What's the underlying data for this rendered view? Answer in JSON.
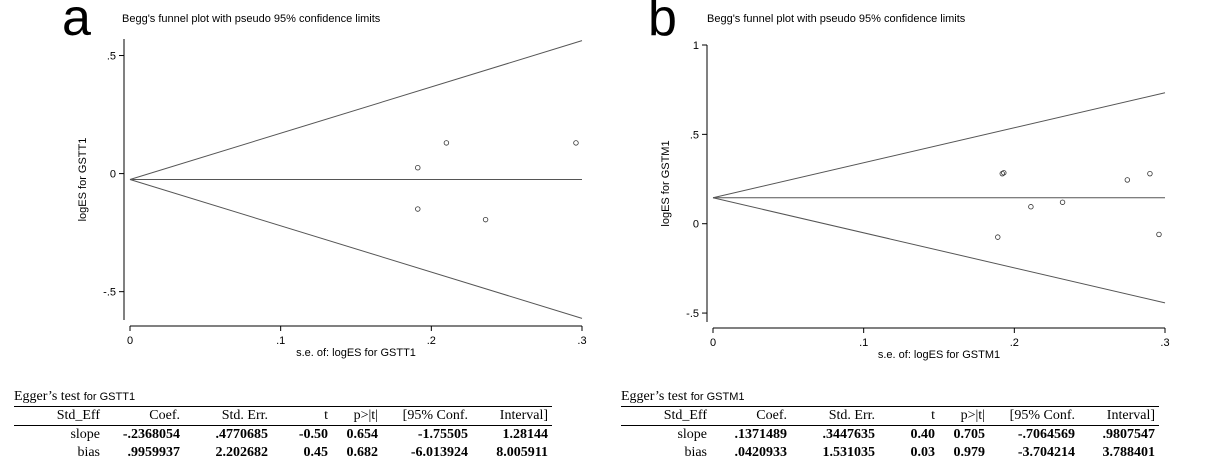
{
  "chart_data": [
    {
      "type": "scatter",
      "panel_label": "a",
      "title": "Begg's funnel plot with pseudo 95% confidence limits",
      "xlabel": "s.e. of: logES for GSTT1",
      "ylabel": "logES for GSTT1",
      "xlim": [
        0,
        0.3
      ],
      "ylim": [
        -0.62,
        0.57
      ],
      "x_ticks": [
        "0",
        ".1",
        ".2",
        ".3"
      ],
      "x_tick_values": [
        0,
        0.1,
        0.2,
        0.3
      ],
      "y_ticks": [
        "-.5",
        "0",
        ".5"
      ],
      "y_tick_values": [
        -0.5,
        0,
        0.5
      ],
      "pooled_estimate": -0.025,
      "funnel_max_se": 0.3,
      "points": [
        {
          "x": 0.191,
          "y": 0.025
        },
        {
          "x": 0.21,
          "y": 0.13
        },
        {
          "x": 0.296,
          "y": 0.13
        },
        {
          "x": 0.191,
          "y": -0.15
        },
        {
          "x": 0.236,
          "y": -0.195
        }
      ],
      "grid": false
    },
    {
      "type": "scatter",
      "panel_label": "b",
      "title": "Begg's funnel plot with pseudo 95% confidence limits",
      "xlabel": "s.e. of: logES for GSTM1",
      "ylabel": "logES for GSTM1",
      "xlim": [
        0,
        0.3
      ],
      "ylim": [
        -0.55,
        1.0
      ],
      "x_ticks": [
        "0",
        ".1",
        ".2",
        ".3"
      ],
      "x_tick_values": [
        0,
        0.1,
        0.2,
        0.3
      ],
      "y_ticks": [
        "-.5",
        "0",
        ".5",
        "1"
      ],
      "y_tick_values": [
        -0.5,
        0,
        0.5,
        1.0
      ],
      "pooled_estimate": 0.145,
      "funnel_max_se": 0.3,
      "points": [
        {
          "x": 0.192,
          "y": 0.28
        },
        {
          "x": 0.193,
          "y": 0.285
        },
        {
          "x": 0.211,
          "y": 0.095
        },
        {
          "x": 0.232,
          "y": 0.12
        },
        {
          "x": 0.189,
          "y": -0.075
        },
        {
          "x": 0.275,
          "y": 0.245
        },
        {
          "x": 0.29,
          "y": 0.28
        },
        {
          "x": 0.296,
          "y": -0.06
        }
      ],
      "grid": false
    }
  ],
  "egger_tests": [
    {
      "title_main": "Egger’s test",
      "title_small": "for GSTT1",
      "headers": [
        "Std_Eff",
        "Coef.",
        "Std.  Err.",
        "t",
        "p>|t|",
        "[95%  Conf.",
        "Interval]"
      ],
      "rows": [
        {
          "label": "slope",
          "values": [
            "-.2368054",
            ".4770685",
            "-0.50",
            "0.654",
            "-1.75505",
            "1.28144"
          ]
        },
        {
          "label": "bias",
          "values": [
            ".9959937",
            "2.202682",
            "0.45",
            "0.682",
            "-6.013924",
            "8.005911"
          ]
        }
      ]
    },
    {
      "title_main": "Egger’s test",
      "title_small": "for GSTM1",
      "headers": [
        "Std_Eff",
        "Coef.",
        "Std.  Err.",
        "t",
        "p>|t|",
        "[95%  Conf.",
        "Interval]"
      ],
      "rows": [
        {
          "label": "slope",
          "values": [
            ".1371489",
            ".3447635",
            "0.40",
            "0.705",
            "-.7064569",
            ".9807547"
          ]
        },
        {
          "label": "bias",
          "values": [
            ".0420933",
            "1.531035",
            "0.03",
            "0.979",
            "-3.704214",
            "3.788401"
          ]
        }
      ]
    }
  ]
}
